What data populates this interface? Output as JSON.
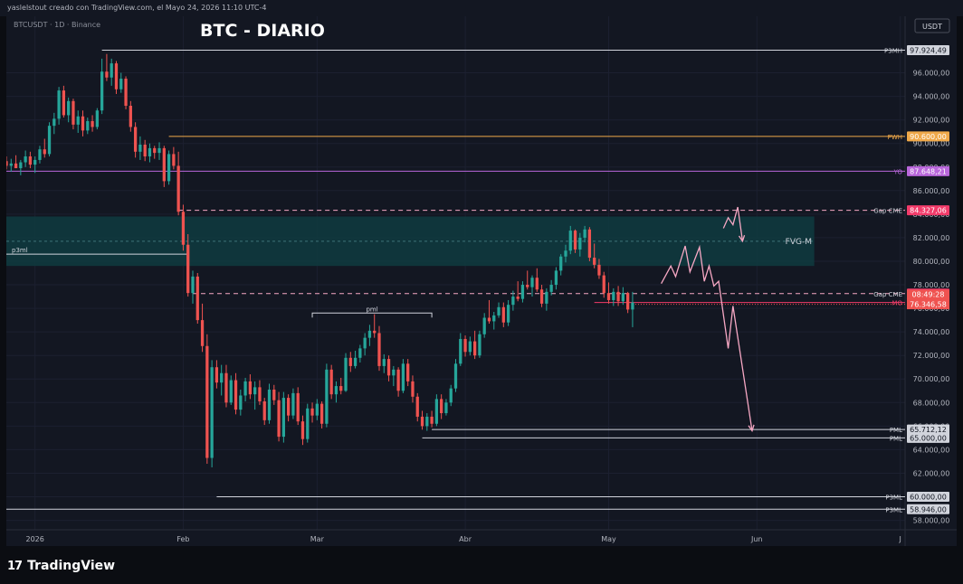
{
  "header": {
    "caption": "yaslelstout creado con TradingView.com, el Mayo 24, 2026 11:10 UTC-4"
  },
  "chart": {
    "symbol_line": "BTCUSDT · 1D · Binance",
    "title": "BTC - DIARIO",
    "currency_label": "USDT"
  },
  "brand": {
    "logo": "17",
    "name": "TradingView"
  },
  "colors": {
    "background": "#131722",
    "bull": "#26a69a",
    "bear": "#ef5350",
    "fvg_zone": "#0f3b40",
    "projection": "#f7a8c4",
    "pwh": "#f0a94a",
    "yo": "#b967db",
    "gap": "#f23b6a"
  },
  "chart_data": {
    "type": "candlestick",
    "title": "BTC - DIARIO",
    "symbol": "BTCUSDT",
    "interval": "1D",
    "exchange": "Binance",
    "currency": "USDT",
    "y_ticks": [
      58000,
      60000,
      62000,
      64000,
      66000,
      68000,
      70000,
      72000,
      74000,
      76000,
      78000,
      80000,
      82000,
      84000,
      86000,
      88000,
      90000,
      92000,
      94000,
      96000
    ],
    "x_ticks": [
      {
        "label": "2026",
        "day": 0
      },
      {
        "label": "Feb",
        "day": 31
      },
      {
        "label": "Mar",
        "day": 59
      },
      {
        "label": "Abr",
        "day": 90
      },
      {
        "label": "May",
        "day": 120
      },
      {
        "label": "Jun",
        "day": 151
      },
      {
        "label": "J",
        "day": 181
      }
    ],
    "ylim": [
      57200,
      100800
    ],
    "xlim": [
      -6,
      182
    ],
    "series_ohlc": [
      [
        -6,
        88500,
        88900,
        87800,
        88100
      ],
      [
        -5,
        88100,
        88700,
        87600,
        88300
      ],
      [
        -4,
        88300,
        89000,
        87900,
        87900
      ],
      [
        -3,
        87900,
        88600,
        87300,
        88400
      ],
      [
        -2,
        88400,
        89400,
        88000,
        88900
      ],
      [
        -1,
        88900,
        89300,
        87900,
        88200
      ],
      [
        0,
        88200,
        88900,
        87500,
        88600
      ],
      [
        1,
        88600,
        89800,
        88300,
        89500
      ],
      [
        2,
        89500,
        90400,
        88800,
        89100
      ],
      [
        3,
        89100,
        91800,
        88900,
        91500
      ],
      [
        4,
        91500,
        92600,
        90800,
        92100
      ],
      [
        5,
        92100,
        94800,
        91600,
        94500
      ],
      [
        6,
        94500,
        94900,
        92200,
        92400
      ],
      [
        7,
        92400,
        93900,
        91800,
        93600
      ],
      [
        8,
        93600,
        93800,
        91200,
        91600
      ],
      [
        9,
        91600,
        92800,
        90900,
        92300
      ],
      [
        10,
        92300,
        92800,
        90600,
        91100
      ],
      [
        11,
        91100,
        92200,
        90800,
        91900
      ],
      [
        12,
        91900,
        92400,
        91000,
        91400
      ],
      [
        13,
        91400,
        93000,
        91200,
        92800
      ],
      [
        14,
        92800,
        97200,
        92500,
        96100
      ],
      [
        15,
        96100,
        97600,
        95300,
        95600
      ],
      [
        16,
        95600,
        97200,
        94900,
        96800
      ],
      [
        17,
        96800,
        97000,
        94200,
        94600
      ],
      [
        18,
        94600,
        96000,
        94300,
        95500
      ],
      [
        19,
        95500,
        95700,
        92900,
        93200
      ],
      [
        20,
        93200,
        93600,
        91000,
        91400
      ],
      [
        21,
        91400,
        91800,
        88800,
        89300
      ],
      [
        22,
        89300,
        90600,
        88600,
        89900
      ],
      [
        23,
        89900,
        90300,
        88500,
        88900
      ],
      [
        24,
        88900,
        90000,
        88400,
        89600
      ],
      [
        25,
        89600,
        89800,
        88700,
        89200
      ],
      [
        26,
        89200,
        90100,
        88600,
        89600
      ],
      [
        27,
        89600,
        89800,
        86300,
        86800
      ],
      [
        28,
        86800,
        89400,
        86500,
        89100
      ],
      [
        29,
        89100,
        89700,
        87800,
        88100
      ],
      [
        30,
        88100,
        89300,
        83900,
        84200
      ],
      [
        31,
        84200,
        84800,
        80900,
        81400
      ],
      [
        32,
        81400,
        82300,
        77000,
        77300
      ],
      [
        33,
        77300,
        79200,
        76400,
        78700
      ],
      [
        34,
        78700,
        79000,
        74700,
        75000
      ],
      [
        35,
        75000,
        76400,
        72300,
        72800
      ],
      [
        36,
        72800,
        73800,
        62800,
        63300
      ],
      [
        37,
        63300,
        71600,
        62500,
        71000
      ],
      [
        38,
        71000,
        71600,
        69200,
        69700
      ],
      [
        39,
        69700,
        71200,
        68600,
        70500
      ],
      [
        40,
        70500,
        71200,
        67600,
        68000
      ],
      [
        41,
        68000,
        70300,
        67800,
        69900
      ],
      [
        42,
        69900,
        70500,
        67000,
        67400
      ],
      [
        43,
        67400,
        69100,
        66900,
        68600
      ],
      [
        44,
        68600,
        70100,
        68100,
        69800
      ],
      [
        45,
        69800,
        70400,
        68300,
        68700
      ],
      [
        46,
        68700,
        69800,
        67400,
        69300
      ],
      [
        47,
        69300,
        69900,
        67800,
        68100
      ],
      [
        48,
        68100,
        68400,
        66100,
        66500
      ],
      [
        49,
        66500,
        69600,
        66200,
        69100
      ],
      [
        50,
        69100,
        69500,
        67800,
        68200
      ],
      [
        51,
        68200,
        68900,
        64700,
        65100
      ],
      [
        52,
        65100,
        68900,
        64600,
        68400
      ],
      [
        53,
        68400,
        68700,
        66400,
        66900
      ],
      [
        54,
        66900,
        69200,
        66600,
        68800
      ],
      [
        55,
        68800,
        69300,
        66100,
        66400
      ],
      [
        56,
        66400,
        66900,
        64400,
        64900
      ],
      [
        57,
        64900,
        67900,
        64600,
        67500
      ],
      [
        58,
        67500,
        68000,
        66300,
        66900
      ],
      [
        59,
        66900,
        68300,
        66500,
        67900
      ],
      [
        60,
        67900,
        68100,
        65800,
        66200
      ],
      [
        61,
        66200,
        71300,
        65900,
        70800
      ],
      [
        62,
        70800,
        71200,
        68300,
        68700
      ],
      [
        63,
        68700,
        69800,
        68000,
        69400
      ],
      [
        64,
        69400,
        70100,
        68700,
        69000
      ],
      [
        65,
        69000,
        72200,
        68900,
        71800
      ],
      [
        66,
        71800,
        72300,
        70600,
        71100
      ],
      [
        67,
        71100,
        72400,
        70900,
        71800
      ],
      [
        68,
        71800,
        72900,
        71400,
        72600
      ],
      [
        69,
        72600,
        73900,
        72000,
        73500
      ],
      [
        70,
        73500,
        74600,
        72800,
        74100
      ],
      [
        71,
        74100,
        75500,
        73500,
        73900
      ],
      [
        72,
        73900,
        74500,
        70700,
        71100
      ],
      [
        73,
        71100,
        72100,
        70500,
        71700
      ],
      [
        74,
        71700,
        72000,
        69800,
        70300
      ],
      [
        75,
        70300,
        71100,
        69400,
        70800
      ],
      [
        76,
        70800,
        71000,
        68500,
        69000
      ],
      [
        77,
        69000,
        71700,
        68800,
        71300
      ],
      [
        78,
        71300,
        71700,
        69400,
        69800
      ],
      [
        79,
        69800,
        70300,
        68000,
        68500
      ],
      [
        80,
        68500,
        68800,
        66400,
        66800
      ],
      [
        81,
        66800,
        67300,
        65700,
        66000
      ],
      [
        82,
        66000,
        67100,
        65600,
        66800
      ],
      [
        83,
        66800,
        67300,
        65900,
        66200
      ],
      [
        84,
        66200,
        68700,
        66000,
        68300
      ],
      [
        85,
        68300,
        68700,
        66600,
        67100
      ],
      [
        86,
        67100,
        68300,
        66900,
        68000
      ],
      [
        87,
        68000,
        69500,
        67700,
        69200
      ],
      [
        88,
        69200,
        71700,
        68900,
        71300
      ],
      [
        89,
        71300,
        73900,
        71100,
        73400
      ],
      [
        90,
        73400,
        73700,
        71900,
        72300
      ],
      [
        91,
        72300,
        73600,
        72000,
        73200
      ],
      [
        92,
        73200,
        74100,
        71700,
        72000
      ],
      [
        93,
        72000,
        74100,
        71800,
        73800
      ],
      [
        94,
        73800,
        75600,
        73500,
        75200
      ],
      [
        95,
        75200,
        76700,
        74700,
        74900
      ],
      [
        96,
        74900,
        75700,
        74200,
        75400
      ],
      [
        97,
        75400,
        76500,
        75200,
        76100
      ],
      [
        98,
        76100,
        76500,
        74400,
        74800
      ],
      [
        99,
        74800,
        76700,
        74500,
        76300
      ],
      [
        100,
        76300,
        77500,
        75800,
        77000
      ],
      [
        101,
        77000,
        78300,
        76600,
        76800
      ],
      [
        102,
        76800,
        78300,
        76500,
        78000
      ],
      [
        103,
        78000,
        79200,
        77600,
        77800
      ],
      [
        104,
        77800,
        78800,
        77000,
        78600
      ],
      [
        105,
        78600,
        79400,
        77400,
        77600
      ],
      [
        106,
        77600,
        78000,
        76100,
        76400
      ],
      [
        107,
        76400,
        77700,
        75800,
        77400
      ],
      [
        108,
        77400,
        78400,
        77100,
        78000
      ],
      [
        109,
        78000,
        79500,
        77600,
        79200
      ],
      [
        110,
        79200,
        80600,
        78800,
        80400
      ],
      [
        111,
        80400,
        81400,
        79900,
        80900
      ],
      [
        112,
        80900,
        83000,
        80600,
        82600
      ],
      [
        113,
        82600,
        82700,
        80700,
        81000
      ],
      [
        114,
        81000,
        82400,
        80400,
        82000
      ],
      [
        115,
        82000,
        83000,
        81600,
        82700
      ],
      [
        116,
        82700,
        82900,
        80000,
        80300
      ],
      [
        117,
        80300,
        81500,
        79400,
        79700
      ],
      [
        118,
        79700,
        80200,
        78500,
        78800
      ],
      [
        119,
        78800,
        79100,
        76900,
        77300
      ],
      [
        120,
        77300,
        78200,
        76400,
        76700
      ],
      [
        121,
        76700,
        77700,
        76200,
        77400
      ],
      [
        122,
        77400,
        77900,
        76200,
        76600
      ],
      [
        123,
        76600,
        77800,
        76300,
        77300
      ],
      [
        124,
        77300,
        77400,
        75600,
        75900
      ],
      [
        125,
        75900,
        77400,
        74400,
        76500
      ]
    ],
    "levels": [
      {
        "label": "P3MH",
        "value": 97924.49,
        "price_label": "97.924,49",
        "color": "#d1d4dc",
        "style": "solid",
        "from_day": 14
      },
      {
        "label": "PWH",
        "value": 90600.0,
        "price_label": "90.600,00",
        "color": "#f0a94a",
        "style": "solid",
        "from_day": 28
      },
      {
        "label": "YO",
        "value": 87648.21,
        "price_label": "87.648,21",
        "color": "#b967db",
        "style": "solid",
        "from_day": -6
      },
      {
        "label": "Gap CME",
        "value": 84327.06,
        "price_label": "84.327,06",
        "color": "#f7a8c4",
        "style": "dashed",
        "from_day": 30
      },
      {
        "label": "Gap CME",
        "value": 77249.31,
        "price_label": "77.249,31",
        "color": "#f7a8c4",
        "style": "dashed",
        "from_day": 33
      },
      {
        "label": "MO",
        "value": 76500.0,
        "price_label": "76.500,00",
        "color": "#f23b6a",
        "style": "solid",
        "from_day": 117
      },
      {
        "label": "PML",
        "value": 65712.12,
        "price_label": "65.712,12",
        "color": "#d1d4dc",
        "style": "solid",
        "from_day": 83
      },
      {
        "label": "PML",
        "value": 65000.0,
        "price_label": "65.000,00",
        "color": "#d1d4dc",
        "style": "solid",
        "from_day": 81
      },
      {
        "label": "P3ML",
        "value": 60000.0,
        "price_label": "60.000,00",
        "color": "#d1d4dc",
        "style": "solid",
        "from_day": 38
      },
      {
        "label": "P3ML",
        "value": 58946.0,
        "price_label": "58.946,00",
        "color": "#d1d4dc",
        "style": "solid",
        "from_day": -6
      }
    ],
    "last_price": {
      "value": 76346.58,
      "price_label": "76.346,58",
      "countdown": "08:49:28"
    },
    "fvg_zone": {
      "label": "FVG-M",
      "top": 83800,
      "bottom": 79600,
      "from_day": -6,
      "to_day": 163
    },
    "p3ml_inline": {
      "label": "p3ml",
      "value": 80600,
      "from_day": -6,
      "to_day": 32
    },
    "pml_inline": {
      "label": "pml",
      "value": 75600,
      "from_day": 58,
      "to_day": 83
    },
    "projection_paths": [
      [
        [
          131,
          78100
        ],
        [
          133,
          79600
        ],
        [
          134,
          78700
        ],
        [
          136,
          81300
        ],
        [
          137,
          79100
        ],
        [
          139,
          81200
        ],
        [
          140,
          78300
        ],
        [
          141,
          79600
        ],
        [
          142,
          77900
        ],
        [
          143,
          78300
        ],
        [
          145,
          72600
        ],
        [
          146,
          76200
        ],
        [
          150,
          65600
        ]
      ],
      [
        [
          144,
          82800
        ],
        [
          145,
          83700
        ],
        [
          146,
          83100
        ],
        [
          147,
          84600
        ],
        [
          148,
          81700
        ]
      ]
    ]
  }
}
